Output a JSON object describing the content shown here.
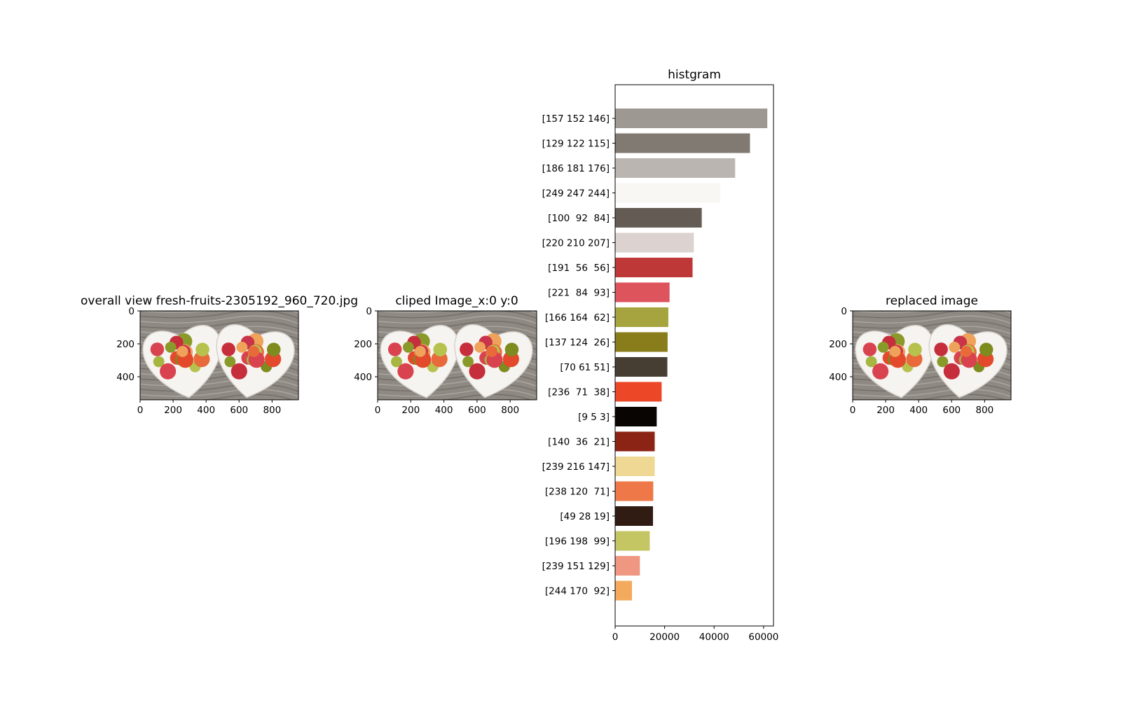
{
  "figure": {
    "panel1": {
      "title": "overall view fresh-fruits-2305192_960_720.jpg"
    },
    "panel2": {
      "title": "cliped Image_x:0 y:0"
    },
    "panel4": {
      "title": "replaced image"
    }
  },
  "image_axes": {
    "x_ticks": [
      "0",
      "200",
      "400",
      "600",
      "800"
    ],
    "y_ticks": [
      "0",
      "200",
      "400"
    ],
    "xlim": [
      0,
      960
    ],
    "ylim": [
      0,
      540
    ]
  },
  "chart_data": {
    "type": "bar",
    "orientation": "horizontal",
    "title": "histgram",
    "xlabel": "",
    "ylabel": "",
    "xlim": [
      0,
      64000
    ],
    "x_ticks": [
      "0",
      "20000",
      "40000",
      "60000"
    ],
    "categories": [
      "[157 152 146]",
      "[129 122 115]",
      "[186 181 176]",
      "[249 247 244]",
      "[100  92  84]",
      "[220 210 207]",
      "[191  56  56]",
      "[221  84  93]",
      "[166 164  62]",
      "[137 124  26]",
      "[70 61 51]",
      "[236  71  38]",
      "[9 5 3]",
      "[140  36  21]",
      "[239 216 147]",
      "[238 120  71]",
      "[49 28 19]",
      "[196 198  99]",
      "[239 151 129]",
      "[244 170  92]"
    ],
    "values": [
      61500,
      54500,
      48500,
      42500,
      35000,
      31800,
      31300,
      22000,
      21500,
      21200,
      21100,
      18800,
      16800,
      16000,
      16000,
      15400,
      15300,
      14000,
      10000,
      6800
    ],
    "colors": [
      "#9d9892",
      "#817a73",
      "#bab5b0",
      "#f9f7f4",
      "#645c54",
      "#dcd2cf",
      "#bf3838",
      "#dd545d",
      "#a6a43e",
      "#897c1a",
      "#463d33",
      "#ec4726",
      "#090503",
      "#8c2415",
      "#efd893",
      "#ee7847",
      "#311c13",
      "#c4c663",
      "#ef9781",
      "#f4aa5c"
    ]
  }
}
